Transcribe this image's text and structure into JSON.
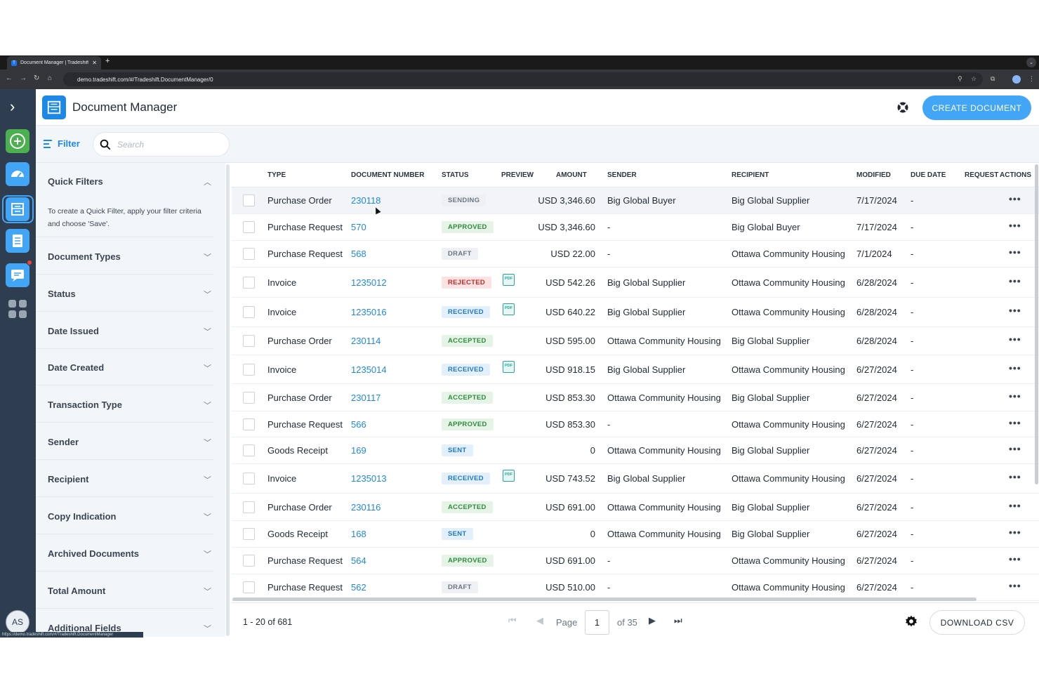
{
  "browser": {
    "tab_title": "Document Manager | Tradeshift",
    "favicon_letter": "T",
    "url": "demo.tradeshift.com/#/Tradeshift.DocumentManager/0",
    "status_url": "https://demo.tradeshift.com/#/Tradeshift.DocumentManager"
  },
  "rail": {
    "icons": [
      "chevron-right-icon",
      "add-icon",
      "dashboard-icon",
      "document-manager-icon",
      "tasks-icon",
      "messages-icon",
      "apps-grid-icon"
    ],
    "avatar_initials": "AS"
  },
  "header": {
    "title": "Document Manager",
    "create_label": "CREATE DOCUMENT"
  },
  "filterbar": {
    "filter_label": "Filter",
    "search_placeholder": "Search"
  },
  "sidebar": {
    "quick_filters_title": "Quick Filters",
    "quick_filters_desc": "To create a Quick Filter, apply your filter criteria and choose 'Save'.",
    "sections": [
      "Document Types",
      "Status",
      "Date Issued",
      "Date Created",
      "Transaction Type",
      "Sender",
      "Recipient",
      "Copy Indication",
      "Archived Documents",
      "Total Amount",
      "Additional Fields"
    ]
  },
  "table": {
    "columns": [
      "TYPE",
      "DOCUMENT NUMBER",
      "STATUS",
      "PREVIEW",
      "AMOUNT",
      "SENDER",
      "RECIPIENT",
      "MODIFIED",
      "DUE DATE",
      "REQUEST",
      "ACTIONS"
    ],
    "rows": [
      {
        "type": "Purchase Order",
        "number": "230118",
        "status": "SENDING",
        "status_kind": "sending",
        "preview": false,
        "amount": "USD 3,346.60",
        "sender": "Big Global Buyer",
        "recipient": "Big Global Supplier",
        "modified": "7/17/2024",
        "due": "-"
      },
      {
        "type": "Purchase Request",
        "number": "570",
        "status": "APPROVED",
        "status_kind": "approved",
        "preview": false,
        "amount": "USD 3,346.60",
        "sender": "-",
        "recipient": "Big Global Buyer",
        "modified": "7/17/2024",
        "due": "-"
      },
      {
        "type": "Purchase Request",
        "number": "568",
        "status": "DRAFT",
        "status_kind": "draft",
        "preview": false,
        "amount": "USD 22.00",
        "sender": "-",
        "recipient": "Ottawa Community Housing",
        "modified": "7/1/2024",
        "due": "-"
      },
      {
        "type": "Invoice",
        "number": "1235012",
        "status": "REJECTED",
        "status_kind": "rejected",
        "preview": true,
        "amount": "USD 542.26",
        "sender": "Big Global Supplier",
        "recipient": "Ottawa Community Housing",
        "modified": "6/28/2024",
        "due": "-"
      },
      {
        "type": "Invoice",
        "number": "1235016",
        "status": "RECEIVED",
        "status_kind": "received",
        "preview": true,
        "amount": "USD 640.22",
        "sender": "Big Global Supplier",
        "recipient": "Ottawa Community Housing",
        "modified": "6/28/2024",
        "due": "-"
      },
      {
        "type": "Purchase Order",
        "number": "230114",
        "status": "ACCEPTED",
        "status_kind": "accepted",
        "preview": false,
        "amount": "USD 595.00",
        "sender": "Ottawa Community Housing",
        "recipient": "Big Global Supplier",
        "modified": "6/28/2024",
        "due": "-"
      },
      {
        "type": "Invoice",
        "number": "1235014",
        "status": "RECEIVED",
        "status_kind": "received",
        "preview": true,
        "amount": "USD 918.15",
        "sender": "Big Global Supplier",
        "recipient": "Ottawa Community Housing",
        "modified": "6/27/2024",
        "due": "-"
      },
      {
        "type": "Purchase Order",
        "number": "230117",
        "status": "ACCEPTED",
        "status_kind": "accepted",
        "preview": false,
        "amount": "USD 853.30",
        "sender": "Ottawa Community Housing",
        "recipient": "Big Global Supplier",
        "modified": "6/27/2024",
        "due": "-"
      },
      {
        "type": "Purchase Request",
        "number": "566",
        "status": "APPROVED",
        "status_kind": "approved",
        "preview": false,
        "amount": "USD 853.30",
        "sender": "-",
        "recipient": "Ottawa Community Housing",
        "modified": "6/27/2024",
        "due": "-"
      },
      {
        "type": "Goods Receipt",
        "number": "169",
        "status": "SENT",
        "status_kind": "sent",
        "preview": false,
        "amount": "0",
        "sender": "Ottawa Community Housing",
        "recipient": "Big Global Supplier",
        "modified": "6/27/2024",
        "due": "-"
      },
      {
        "type": "Invoice",
        "number": "1235013",
        "status": "RECEIVED",
        "status_kind": "received",
        "preview": true,
        "amount": "USD 743.52",
        "sender": "Big Global Supplier",
        "recipient": "Ottawa Community Housing",
        "modified": "6/27/2024",
        "due": "-"
      },
      {
        "type": "Purchase Order",
        "number": "230116",
        "status": "ACCEPTED",
        "status_kind": "accepted",
        "preview": false,
        "amount": "USD 691.00",
        "sender": "Ottawa Community Housing",
        "recipient": "Big Global Supplier",
        "modified": "6/27/2024",
        "due": "-"
      },
      {
        "type": "Goods Receipt",
        "number": "168",
        "status": "SENT",
        "status_kind": "sent",
        "preview": false,
        "amount": "0",
        "sender": "Ottawa Community Housing",
        "recipient": "Big Global Supplier",
        "modified": "6/27/2024",
        "due": "-"
      },
      {
        "type": "Purchase Request",
        "number": "564",
        "status": "APPROVED",
        "status_kind": "approved",
        "preview": false,
        "amount": "USD 691.00",
        "sender": "-",
        "recipient": "Ottawa Community Housing",
        "modified": "6/27/2024",
        "due": "-"
      },
      {
        "type": "Purchase Request",
        "number": "562",
        "status": "DRAFT",
        "status_kind": "draft",
        "preview": false,
        "amount": "USD 510.00",
        "sender": "-",
        "recipient": "Ottawa Community Housing",
        "modified": "6/27/2024",
        "due": "-"
      }
    ],
    "pdf_label": "PDF",
    "more_label": "•••"
  },
  "footer": {
    "range": "1 - 20 of 681",
    "page_label": "Page",
    "page_value": "1",
    "of_label": "of 35",
    "csv_label": "DOWNLOAD CSV"
  },
  "colors": {
    "accent": "#42a5f5",
    "link": "#1e88e5",
    "rail": "#2e3e50"
  }
}
